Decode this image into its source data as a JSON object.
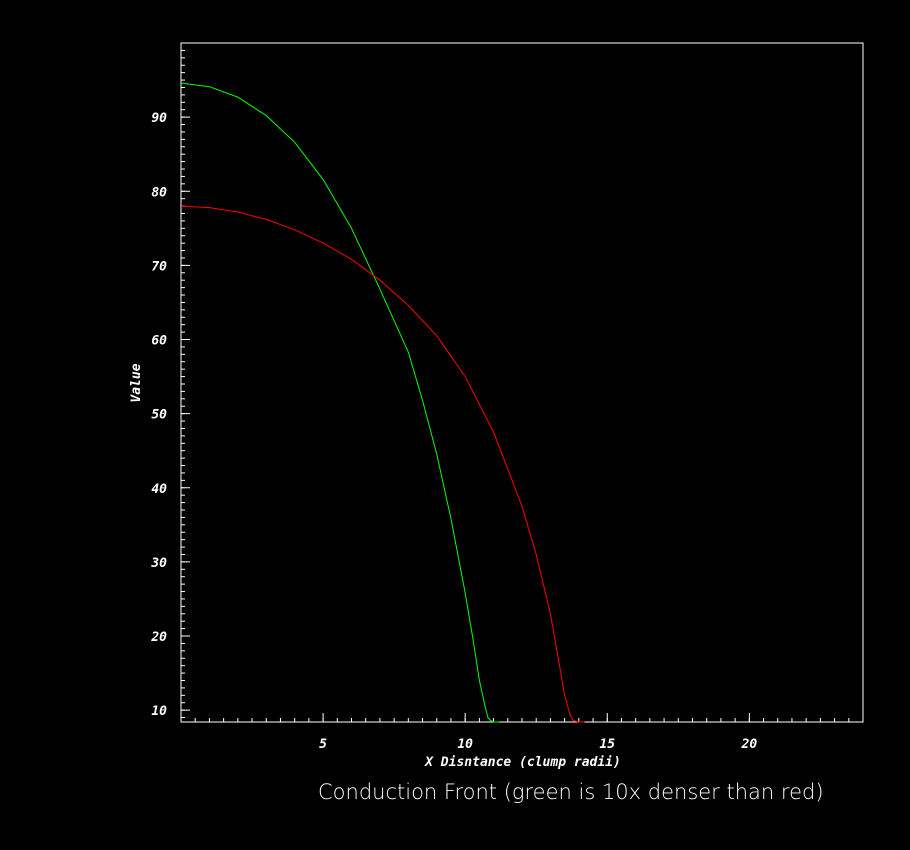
{
  "caption": "Conduction Front (green is 10x denser than red)",
  "chart_data": {
    "type": "line",
    "title": "",
    "xlabel": "X Disntance (clump radii)",
    "ylabel": "Value",
    "xlim": [
      0,
      24
    ],
    "ylim": [
      8.4,
      100
    ],
    "x_ticks": [
      5,
      10,
      15,
      20
    ],
    "y_ticks": [
      10,
      20,
      30,
      40,
      50,
      60,
      70,
      80,
      90
    ],
    "x_minor_step": 0.5,
    "y_minor_step": 1,
    "grid": false,
    "background": "#000000",
    "axis_color": "#ffffff",
    "series": [
      {
        "color": "#00ff00",
        "x": [
          0,
          1,
          2,
          3,
          4,
          5,
          6,
          7,
          8,
          8.5,
          9,
          9.5,
          10,
          10.3,
          10.5,
          10.7,
          10.8,
          10.9,
          11.0,
          11.2
        ],
        "y": [
          94.6,
          94.1,
          92.7,
          90.2,
          86.6,
          81.6,
          75.0,
          66.8,
          58.3,
          51.8,
          44.5,
          35.8,
          25.8,
          19.0,
          14.0,
          10.5,
          9.0,
          8.6,
          8.4,
          8.4
        ]
      },
      {
        "color": "#ff0000",
        "x": [
          0,
          1,
          2,
          3,
          4,
          5,
          6,
          7,
          8,
          9,
          10,
          11,
          12,
          12.5,
          13,
          13.3,
          13.5,
          13.7,
          13.8,
          14.0,
          14.2
        ],
        "y": [
          78.0,
          77.8,
          77.2,
          76.2,
          74.8,
          73.0,
          70.8,
          68.0,
          64.6,
          60.5,
          55.0,
          47.5,
          37.5,
          31.0,
          23.0,
          16.5,
          12.0,
          9.3,
          8.6,
          8.4,
          8.4
        ]
      }
    ]
  }
}
